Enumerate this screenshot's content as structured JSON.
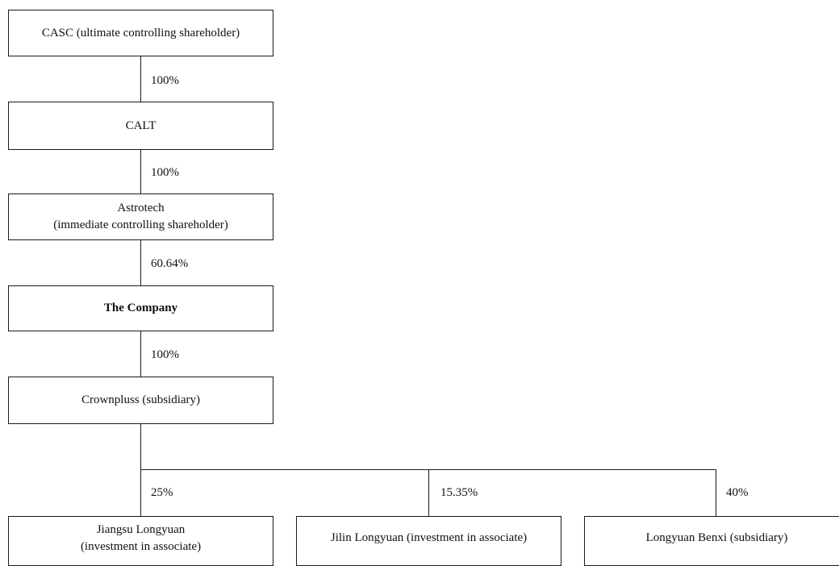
{
  "diagram": {
    "nodes": {
      "casc": {
        "lines": [
          "CASC (ultimate controlling shareholder)"
        ]
      },
      "calt": {
        "lines": [
          "CALT"
        ]
      },
      "astrotech": {
        "lines": [
          "Astrotech",
          "(immediate controlling shareholder)"
        ]
      },
      "company": {
        "lines": [
          "The Company"
        ]
      },
      "crownpluss": {
        "lines": [
          "Crownpluss (subsidiary)"
        ]
      },
      "jiangsu": {
        "lines": [
          "Jiangsu Longyuan",
          "(investment in associate)"
        ]
      },
      "jilin": {
        "lines": [
          "Jilin Longyuan (investment in associate)"
        ]
      },
      "benxi": {
        "lines": [
          "Longyuan Benxi (subsidiary)"
        ]
      }
    },
    "ownership": {
      "casc_calt": "100%",
      "calt_astrotech": "100%",
      "astrotech_company": "60.64%",
      "company_crownpluss": "100%",
      "crownpluss_jiangsu": "25%",
      "crownpluss_jilin": "15.35%",
      "crownpluss_benxi": "40%"
    }
  }
}
